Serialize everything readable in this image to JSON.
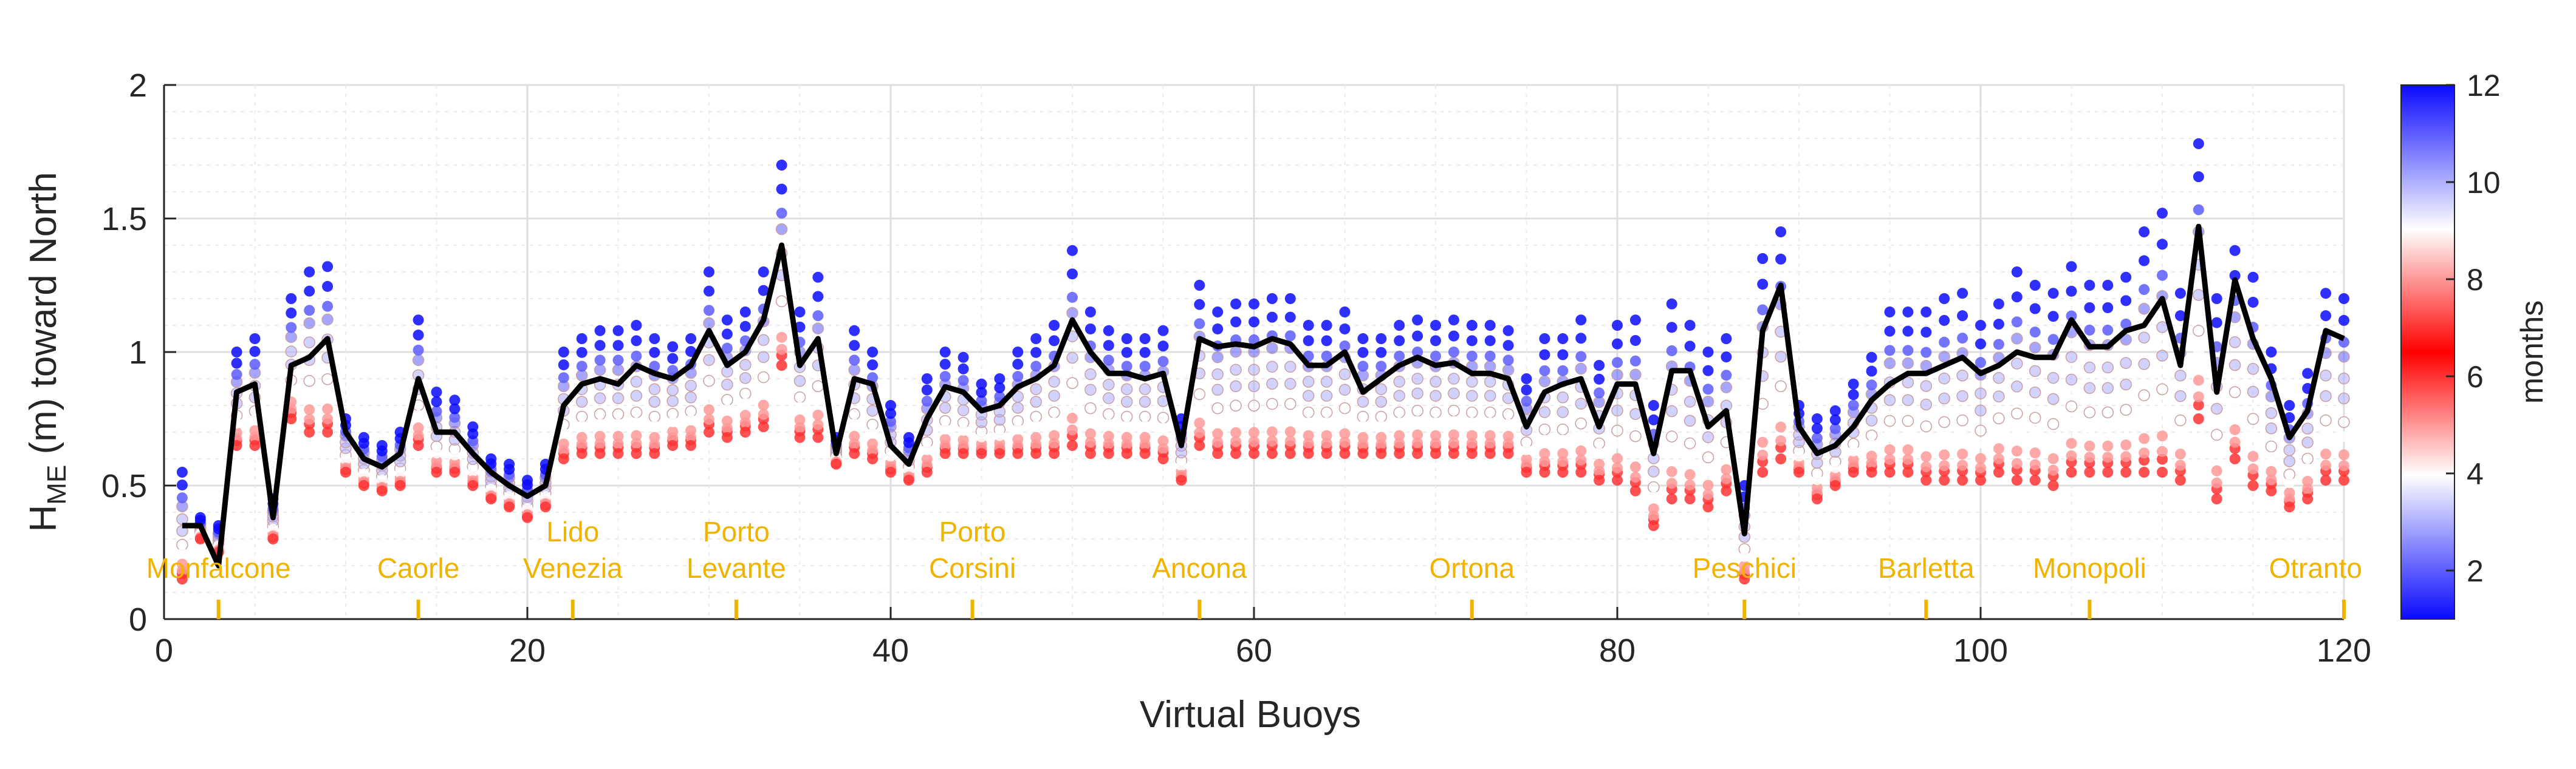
{
  "chart_data": {
    "type": "scatter",
    "xlabel": "Virtual Buoys",
    "ylabel_main": "H",
    "ylabel_sub": "ME",
    "ylabel_rest": " (m) toward North",
    "xlim": [
      0,
      120
    ],
    "ylim": [
      0,
      2
    ],
    "xticks": [
      0,
      20,
      40,
      60,
      80,
      100,
      120
    ],
    "yticks": [
      0,
      0.5,
      1,
      1.5,
      2
    ],
    "grid": true,
    "colorbar": {
      "label": "months",
      "range": [
        1,
        12
      ],
      "ticks": [
        2,
        4,
        6,
        8,
        10,
        12
      ],
      "colors": [
        "#0a0aff",
        "#ffffff",
        "#ff0000",
        "#ffffff",
        "#0a0aff"
      ]
    },
    "line_color": "#000000",
    "station_color": "#f0b400",
    "stations": [
      {
        "x": 3,
        "label1": "",
        "label2": "Monfalcone"
      },
      {
        "x": 14,
        "label1": "",
        "label2": "Caorle"
      },
      {
        "x": 22.5,
        "label1": "Lido",
        "label2": "Venezia"
      },
      {
        "x": 31.5,
        "label1": "Porto",
        "label2": "Levante"
      },
      {
        "x": 44.5,
        "label1": "Porto",
        "label2": "Corsini"
      },
      {
        "x": 57,
        "label1": "",
        "label2": "Ancona"
      },
      {
        "x": 72,
        "label1": "",
        "label2": "Ortona"
      },
      {
        "x": 87,
        "label1": "",
        "label2": "Peschici"
      },
      {
        "x": 97,
        "label1": "",
        "label2": "Barletta"
      },
      {
        "x": 106,
        "label1": "",
        "label2": "Monopoli"
      },
      {
        "x": 120,
        "label1": "",
        "label2": "Otranto"
      }
    ],
    "mean_line": {
      "x": [
        1,
        2,
        3,
        4,
        5,
        6,
        7,
        8,
        9,
        10,
        11,
        12,
        13,
        14,
        15,
        16,
        17,
        18,
        19,
        20,
        21,
        22,
        23,
        24,
        25,
        26,
        27,
        28,
        29,
        30,
        31,
        32,
        33,
        34,
        35,
        36,
        37,
        38,
        39,
        40,
        41,
        42,
        43,
        44,
        45,
        46,
        47,
        48,
        49,
        50,
        51,
        52,
        53,
        54,
        55,
        56,
        57,
        58,
        59,
        60,
        61,
        62,
        63,
        64,
        65,
        66,
        67,
        68,
        69,
        70,
        71,
        72,
        73,
        74,
        75,
        76,
        77,
        78,
        79,
        80,
        81,
        82,
        83,
        84,
        85,
        86,
        87,
        88,
        89,
        90,
        91,
        92,
        93,
        94,
        95,
        96,
        97,
        98,
        99,
        100,
        101,
        102,
        103,
        104,
        105,
        106,
        107,
        108,
        109,
        110,
        111,
        112,
        113,
        114,
        115,
        116,
        117,
        118,
        119,
        120
      ],
      "y": [
        0.35,
        0.35,
        0.2,
        0.85,
        0.88,
        0.38,
        0.95,
        0.98,
        1.05,
        0.7,
        0.6,
        0.57,
        0.62,
        0.9,
        0.7,
        0.7,
        0.62,
        0.55,
        0.5,
        0.46,
        0.5,
        0.8,
        0.88,
        0.9,
        0.88,
        0.95,
        0.92,
        0.9,
        0.95,
        1.08,
        0.95,
        1.0,
        1.12,
        1.4,
        0.95,
        1.05,
        0.62,
        0.9,
        0.88,
        0.65,
        0.58,
        0.75,
        0.87,
        0.85,
        0.78,
        0.8,
        0.87,
        0.9,
        0.95,
        1.12,
        1.0,
        0.92,
        0.92,
        0.9,
        0.92,
        0.65,
        1.05,
        1.02,
        1.03,
        1.02,
        1.05,
        1.03,
        0.95,
        0.95,
        1.0,
        0.85,
        0.9,
        0.95,
        0.98,
        0.95,
        0.96,
        0.92,
        0.92,
        0.9,
        0.72,
        0.85,
        0.88,
        0.9,
        0.72,
        0.88,
        0.88,
        0.62,
        0.93,
        0.93,
        0.72,
        0.78,
        0.32,
        1.08,
        1.25,
        0.72,
        0.62,
        0.65,
        0.72,
        0.82,
        0.88,
        0.92,
        0.92,
        0.95,
        0.98,
        0.92,
        0.95,
        1.0,
        0.98,
        0.98,
        1.12,
        1.02,
        1.02,
        1.08,
        1.1,
        1.2,
        0.95,
        1.47,
        0.85,
        1.27,
        1.05,
        0.9,
        0.68,
        0.78,
        1.08,
        1.05
      ]
    },
    "monthly_spread": {
      "note": "",
      "low": [
        0.15,
        0.3,
        0.25,
        0.65,
        0.65,
        0.3,
        0.75,
        0.7,
        0.7,
        0.55,
        0.5,
        0.48,
        0.5,
        0.65,
        0.55,
        0.55,
        0.5,
        0.45,
        0.42,
        0.38,
        0.42,
        0.6,
        0.62,
        0.62,
        0.62,
        0.62,
        0.62,
        0.65,
        0.65,
        0.7,
        0.68,
        0.7,
        0.72,
        0.95,
        0.68,
        0.68,
        0.58,
        0.62,
        0.6,
        0.55,
        0.52,
        0.55,
        0.62,
        0.62,
        0.62,
        0.62,
        0.62,
        0.62,
        0.62,
        0.65,
        0.62,
        0.62,
        0.62,
        0.62,
        0.6,
        0.52,
        0.65,
        0.62,
        0.62,
        0.62,
        0.62,
        0.62,
        0.62,
        0.62,
        0.62,
        0.62,
        0.62,
        0.62,
        0.62,
        0.62,
        0.62,
        0.62,
        0.62,
        0.62,
        0.55,
        0.55,
        0.55,
        0.55,
        0.52,
        0.52,
        0.48,
        0.35,
        0.45,
        0.45,
        0.42,
        0.48,
        0.15,
        0.55,
        0.6,
        0.55,
        0.45,
        0.5,
        0.55,
        0.55,
        0.55,
        0.55,
        0.52,
        0.52,
        0.52,
        0.52,
        0.55,
        0.52,
        0.52,
        0.5,
        0.55,
        0.55,
        0.55,
        0.55,
        0.55,
        0.55,
        0.52,
        0.75,
        0.45,
        0.6,
        0.5,
        0.48,
        0.42,
        0.45,
        0.52,
        0.52
      ],
      "high": [
        0.55,
        0.38,
        0.35,
        1.0,
        1.05,
        0.45,
        1.2,
        1.3,
        1.32,
        0.75,
        0.68,
        0.65,
        0.7,
        1.12,
        0.85,
        0.82,
        0.72,
        0.6,
        0.58,
        0.52,
        0.58,
        1.0,
        1.05,
        1.08,
        1.08,
        1.1,
        1.05,
        1.02,
        1.05,
        1.3,
        1.12,
        1.15,
        1.3,
        1.7,
        1.15,
        1.28,
        0.68,
        1.08,
        1.0,
        0.8,
        0.68,
        0.9,
        1.0,
        0.98,
        0.88,
        0.9,
        1.0,
        1.05,
        1.1,
        1.38,
        1.15,
        1.08,
        1.05,
        1.05,
        1.08,
        0.75,
        1.25,
        1.15,
        1.18,
        1.18,
        1.2,
        1.2,
        1.1,
        1.1,
        1.15,
        1.05,
        1.05,
        1.1,
        1.12,
        1.1,
        1.12,
        1.1,
        1.1,
        1.08,
        0.9,
        1.05,
        1.05,
        1.12,
        0.95,
        1.1,
        1.12,
        0.8,
        1.18,
        1.1,
        1.0,
        1.05,
        0.5,
        1.35,
        1.45,
        0.8,
        0.75,
        0.78,
        0.88,
        0.98,
        1.15,
        1.15,
        1.15,
        1.2,
        1.22,
        1.1,
        1.18,
        1.3,
        1.25,
        1.22,
        1.32,
        1.25,
        1.25,
        1.28,
        1.45,
        1.52,
        1.22,
        1.78,
        1.2,
        1.38,
        1.28,
        1.0,
        0.8,
        0.92,
        1.22,
        1.2
      ]
    }
  }
}
